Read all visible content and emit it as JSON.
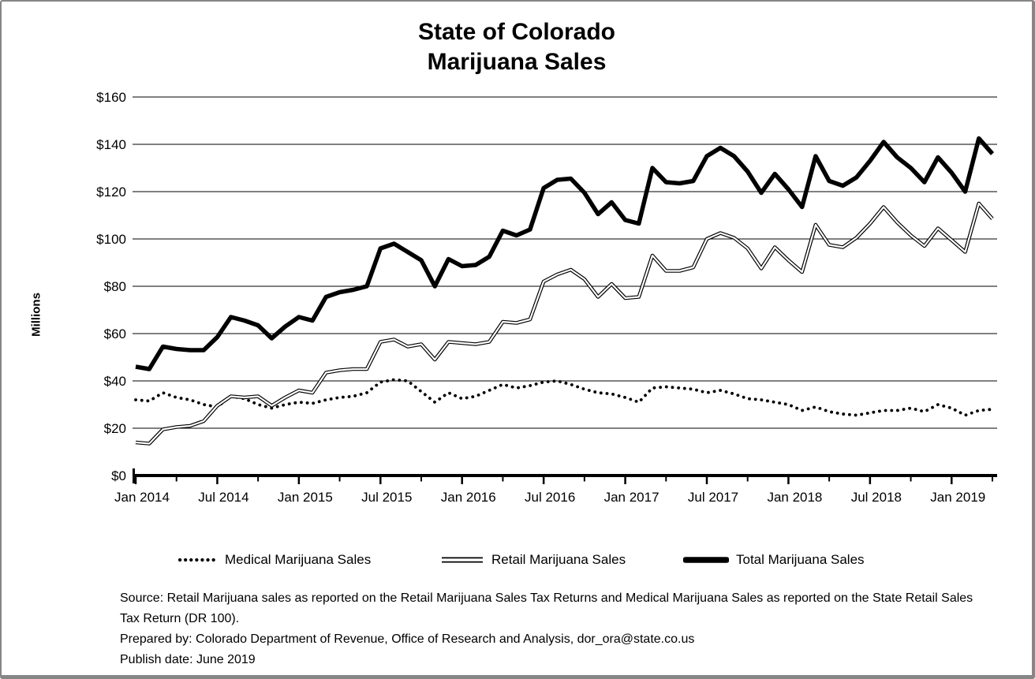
{
  "window": {
    "background": "#ffffff",
    "border_color": "#868686",
    "text_color": "#000000"
  },
  "title": {
    "line1": "State of Colorado",
    "line2": "Marijuana Sales"
  },
  "y_axis": {
    "label": "Millions",
    "ticks": [
      "$160",
      "$140",
      "$120",
      "$100",
      "$80",
      "$60",
      "$40",
      "$20",
      "$0"
    ]
  },
  "x_axis": {
    "tick_labels": [
      "Jan 2014",
      "Jul 2014",
      "Jan 2015",
      "Jul 2015",
      "Jan 2016",
      "Jul 2016",
      "Jan 2017",
      "Jul 2017",
      "Jan 2018",
      "Jul 2018",
      "Jan 2019"
    ],
    "minor_tick_every_months": 3
  },
  "legend": {
    "items": [
      {
        "label": "Medical Marijuana Sales",
        "style": "dotted"
      },
      {
        "label": "Retail Marijuana Sales",
        "style": "double-line"
      },
      {
        "label": "Total Marijuana Sales",
        "style": "thick-solid"
      }
    ]
  },
  "footer": {
    "lines": [
      "Source: Retail Marijuana sales as reported on the Retail Marijuana Sales Tax Returns and Medical Marijuana Sales as reported on the State Retail Sales",
      "Tax Return (DR 100).",
      "Prepared by: Colorado Department of Revenue, Office of Research and Analysis, dor_ora@state.co.us",
      "Publish date: June 2019"
    ]
  },
  "chart_data": {
    "type": "line",
    "title": "State of Colorado Marijuana Sales",
    "xlabel": "",
    "ylabel": "Millions",
    "ylim": [
      0,
      160
    ],
    "y_tick_step": 20,
    "y_tick_prefix": "$",
    "grid": "horizontal",
    "legend_position": "bottom",
    "units": "USD millions",
    "x": [
      "Jan 2014",
      "Feb 2014",
      "Mar 2014",
      "Apr 2014",
      "May 2014",
      "Jun 2014",
      "Jul 2014",
      "Aug 2014",
      "Sep 2014",
      "Oct 2014",
      "Nov 2014",
      "Dec 2014",
      "Jan 2015",
      "Feb 2015",
      "Mar 2015",
      "Apr 2015",
      "May 2015",
      "Jun 2015",
      "Jul 2015",
      "Aug 2015",
      "Sep 2015",
      "Oct 2015",
      "Nov 2015",
      "Dec 2015",
      "Jan 2016",
      "Feb 2016",
      "Mar 2016",
      "Apr 2016",
      "May 2016",
      "Jun 2016",
      "Jul 2016",
      "Aug 2016",
      "Sep 2016",
      "Oct 2016",
      "Nov 2016",
      "Dec 2016",
      "Jan 2017",
      "Feb 2017",
      "Mar 2017",
      "Apr 2017",
      "May 2017",
      "Jun 2017",
      "Jul 2017",
      "Aug 2017",
      "Sep 2017",
      "Oct 2017",
      "Nov 2017",
      "Dec 2017",
      "Jan 2018",
      "Feb 2018",
      "Mar 2018",
      "Apr 2018",
      "May 2018",
      "Jun 2018",
      "Jul 2018",
      "Aug 2018",
      "Sep 2018",
      "Oct 2018",
      "Nov 2018",
      "Dec 2018",
      "Jan 2019",
      "Feb 2019",
      "Mar 2019",
      "Apr 2019"
    ],
    "series": [
      {
        "name": "Medical Marijuana Sales",
        "line_style": "dotted",
        "color": "#000000",
        "values": [
          32,
          31.5,
          35,
          33,
          32,
          30,
          29,
          33.5,
          32.5,
          30,
          28.5,
          30,
          31,
          30.5,
          32,
          33,
          33.5,
          35,
          39.5,
          40.5,
          40,
          35.5,
          31,
          35,
          32.5,
          33.5,
          36,
          38.5,
          37,
          38,
          39.5,
          40,
          38.5,
          36.5,
          35,
          34.5,
          33,
          31,
          37,
          37.5,
          37,
          36.5,
          35,
          36,
          34.5,
          32.5,
          32,
          31,
          30,
          27.5,
          29,
          27,
          26,
          25.5,
          26.5,
          27.5,
          27.5,
          28.5,
          27,
          30,
          28.5,
          25.5,
          27.5,
          28
        ]
      },
      {
        "name": "Retail Marijuana Sales",
        "line_style": "double",
        "color": "#000000",
        "values": [
          14,
          13.5,
          19.5,
          20.5,
          21,
          23,
          29.5,
          33.5,
          33,
          33.5,
          29.5,
          33,
          36,
          35,
          43.5,
          44.5,
          45,
          45,
          56.5,
          57.5,
          54.5,
          55.5,
          49,
          56.5,
          56,
          55.5,
          56.5,
          65,
          64.5,
          66,
          82,
          85,
          87,
          83,
          75.5,
          81,
          75,
          75.5,
          93,
          86.5,
          86.5,
          88,
          100,
          102.5,
          100.5,
          96,
          87.5,
          96.5,
          91,
          86,
          106,
          97.5,
          96.5,
          100.5,
          106.5,
          113.5,
          107,
          101.5,
          97,
          104.5,
          99.5,
          94.5,
          115,
          108.5
        ]
      },
      {
        "name": "Total Marijuana Sales",
        "line_style": "solid-thick",
        "color": "#000000",
        "values": [
          46,
          45,
          54.5,
          53.5,
          53,
          53,
          58.5,
          67,
          65.5,
          63.5,
          58,
          63,
          67,
          65.5,
          75.5,
          77.5,
          78.5,
          80,
          96,
          98,
          94.5,
          91,
          80,
          91.5,
          88.5,
          89,
          92.5,
          103.5,
          101.5,
          104,
          121.5,
          125,
          125.5,
          119.5,
          110.5,
          115.5,
          108,
          106.5,
          130,
          124,
          123.5,
          124.5,
          135,
          138.5,
          135,
          128.5,
          119.5,
          127.5,
          121,
          113.5,
          135,
          124.5,
          122.5,
          126,
          133,
          141,
          134.5,
          130,
          124,
          134.5,
          128,
          120,
          142.5,
          136
        ]
      }
    ]
  }
}
